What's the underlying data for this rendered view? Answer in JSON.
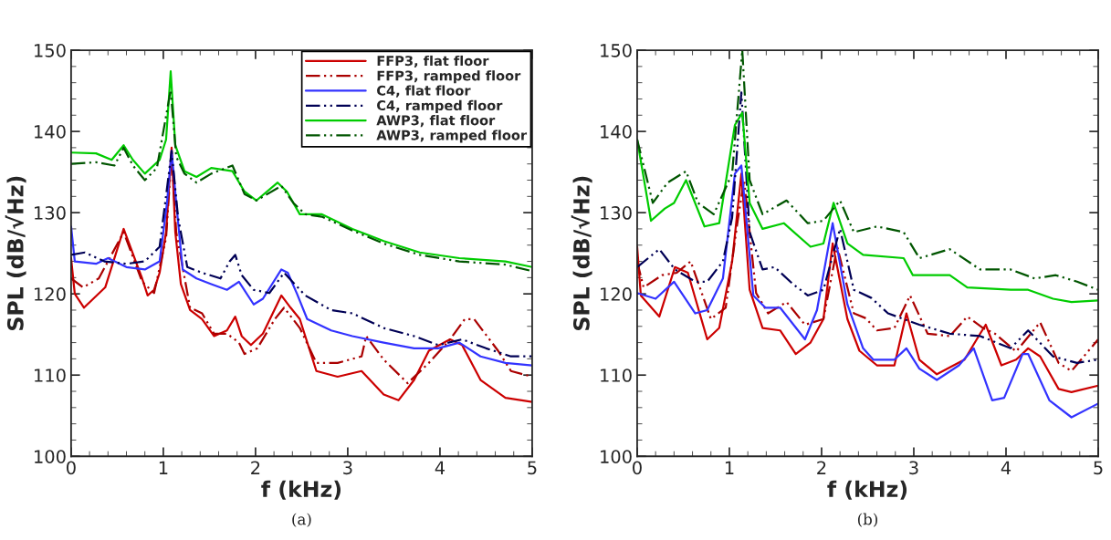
{
  "chart_data": [
    {
      "type": "line",
      "xlabel": "f (kHz)",
      "ylabel": "SPL (dB/√Hz)",
      "xlim": [
        0,
        5
      ],
      "ylim": [
        100,
        150
      ],
      "xticks": [
        0,
        1,
        2,
        3,
        4,
        5
      ],
      "yticks": [
        100,
        110,
        120,
        130,
        140,
        150
      ],
      "grid": false,
      "legend": "top right",
      "annotations": [
        "(a)"
      ],
      "series": [
        {
          "name": "FFP3, flat floor",
          "color": "#cc0000",
          "line_style": "solid",
          "x": [
            0,
            0.04,
            0.14,
            0.37,
            0.57,
            0.77,
            0.83,
            0.9,
            0.96,
            1.03,
            1.09,
            1.13,
            1.19,
            1.29,
            1.42,
            1.55,
            1.69,
            1.78,
            1.85,
            1.95,
            2.08,
            2.28,
            2.38,
            2.48,
            2.66,
            2.89,
            3.15,
            3.39,
            3.55,
            3.72,
            3.88,
            4.11,
            4.24,
            4.44,
            4.71,
            5.0
          ],
          "values": [
            124.4,
            120,
            118.3,
            120.8,
            128,
            121.9,
            119.8,
            120.5,
            122.6,
            127.6,
            138,
            127.6,
            121.2,
            118,
            116.9,
            114.8,
            115.5,
            117.2,
            114.8,
            113.7,
            115.1,
            119.8,
            118.3,
            116.9,
            110.5,
            109.8,
            110.5,
            107.6,
            106.9,
            109.4,
            113,
            114.4,
            113.7,
            109.4,
            107.2,
            106.7
          ]
        },
        {
          "name": "FFP3, ramped floor",
          "color": "#aa0000",
          "line_style": "dashdotdot",
          "x": [
            0,
            0.13,
            0.3,
            0.57,
            0.77,
            0.9,
            1.03,
            1.09,
            1.14,
            1.29,
            1.42,
            1.55,
            1.69,
            1.82,
            1.88,
            2.02,
            2.21,
            2.31,
            2.48,
            2.66,
            2.89,
            3.15,
            3.2,
            3.39,
            3.65,
            3.88,
            4.11,
            4.27,
            4.37,
            4.63,
            4.77,
            5.0
          ],
          "values": [
            121.9,
            120.8,
            121.9,
            127.6,
            121.5,
            120.1,
            126.9,
            137.3,
            127.6,
            118.3,
            117.6,
            115.1,
            115.1,
            114,
            112.6,
            113.3,
            116.9,
            118.3,
            115.8,
            111.5,
            111.5,
            112.3,
            114.8,
            111.9,
            109,
            111.5,
            114.4,
            116.9,
            116.9,
            113,
            110.5,
            109.8
          ]
        },
        {
          "name": "C4, flat floor",
          "color": "#3333ff",
          "line_style": "solid",
          "x": [
            0,
            0.04,
            0.27,
            0.4,
            0.6,
            0.8,
            0.96,
            1.04,
            1.09,
            1.14,
            1.21,
            1.36,
            1.52,
            1.69,
            1.82,
            1.98,
            2.08,
            2.28,
            2.35,
            2.45,
            2.56,
            2.82,
            3.05,
            3.39,
            3.72,
            3.98,
            4.21,
            4.44,
            4.71,
            5.0
          ],
          "values": [
            128.3,
            124,
            123.7,
            124.4,
            123.3,
            123,
            124,
            131.2,
            137.6,
            131.2,
            123,
            121.9,
            121.2,
            120.5,
            121.5,
            118.7,
            119.4,
            123,
            122.6,
            120,
            116.9,
            115.5,
            114.8,
            114,
            113.3,
            113.3,
            114,
            112.3,
            111.5,
            111.2
          ]
        },
        {
          "name": "C4, ramped floor",
          "color": "#000055",
          "line_style": "dashdotdot",
          "x": [
            0,
            0.15,
            0.36,
            0.6,
            0.8,
            0.96,
            1.04,
            1.09,
            1.16,
            1.26,
            1.42,
            1.62,
            1.72,
            1.78,
            1.85,
            1.98,
            2.15,
            2.31,
            2.54,
            2.82,
            3.05,
            3.39,
            3.72,
            3.98,
            4.24,
            4.5,
            4.77,
            5.0
          ],
          "values": [
            124.8,
            125.1,
            124,
            123.7,
            124,
            125.8,
            133,
            137.6,
            129.4,
            123.3,
            122.6,
            121.9,
            124,
            124.8,
            122.3,
            120.5,
            120.1,
            122.6,
            119.8,
            118,
            117.6,
            115.8,
            114.8,
            113.7,
            114.4,
            113.3,
            112.3,
            112.3
          ]
        },
        {
          "name": "AWP3, flat floor",
          "color": "#00cc00",
          "line_style": "solid",
          "x": [
            0,
            0.27,
            0.44,
            0.57,
            0.67,
            0.8,
            0.96,
            1.03,
            1.08,
            1.13,
            1.23,
            1.36,
            1.52,
            1.75,
            1.88,
            2.01,
            2.24,
            2.34,
            2.48,
            2.72,
            3.05,
            3.39,
            3.78,
            4.21,
            4.71,
            5.0
          ],
          "values": [
            137.4,
            137.3,
            136.5,
            138.3,
            136.5,
            134.8,
            136.5,
            139,
            147.4,
            138.3,
            135.1,
            134.4,
            135.5,
            135.1,
            132.6,
            131.5,
            133.7,
            132.6,
            129.8,
            129.8,
            128,
            126.5,
            125.1,
            124.4,
            124,
            123.3
          ]
        },
        {
          "name": "AWP3, ramped floor",
          "color": "#005500",
          "line_style": "dashdotdot",
          "x": [
            0,
            0.27,
            0.47,
            0.57,
            0.67,
            0.8,
            0.93,
            1.08,
            1.14,
            1.23,
            1.36,
            1.52,
            1.75,
            1.88,
            2.01,
            2.28,
            2.41,
            2.54,
            2.72,
            3.05,
            3.39,
            3.78,
            4.21,
            4.71,
            5.0
          ],
          "values": [
            136,
            136.2,
            135.8,
            138,
            135.8,
            134,
            135.5,
            145.1,
            136.9,
            134.8,
            133.7,
            134.8,
            135.8,
            132.3,
            131.5,
            133.3,
            131.2,
            129.8,
            129.5,
            127.8,
            126.2,
            124.8,
            124,
            123.6,
            122.8
          ]
        }
      ]
    },
    {
      "type": "line",
      "xlabel": "f (kHz)",
      "ylabel": "SPL (dB/√Hz)",
      "xlim": [
        0,
        5
      ],
      "ylim": [
        100,
        150
      ],
      "xticks": [
        0,
        1,
        2,
        3,
        4,
        5
      ],
      "yticks": [
        100,
        110,
        120,
        130,
        140,
        150
      ],
      "grid": false,
      "annotations": [
        "(b)"
      ],
      "series": [
        {
          "color": "#cc0000",
          "line_style": "solid",
          "x": [
            0,
            0.04,
            0.24,
            0.41,
            0.55,
            0.76,
            0.89,
            1.03,
            1.13,
            1.22,
            1.36,
            1.55,
            1.72,
            1.88,
            2.02,
            2.12,
            2.28,
            2.41,
            2.6,
            2.79,
            2.92,
            3.06,
            3.25,
            3.55,
            3.72,
            3.78,
            3.95,
            4.11,
            4.24,
            4.37,
            4.57,
            4.71,
            5.0
          ],
          "values": [
            125.8,
            119.8,
            117.2,
            123.3,
            122.6,
            114.4,
            115.8,
            124,
            134.8,
            120.5,
            115.8,
            115.5,
            112.6,
            114,
            116.9,
            126.2,
            116.9,
            113,
            111.2,
            111.2,
            117.6,
            111.9,
            110.1,
            111.9,
            115.1,
            116.2,
            111.2,
            111.9,
            113.3,
            112.3,
            108.3,
            107.9,
            108.7
          ]
        },
        {
          "color": "#aa0000",
          "line_style": "dashdotdot",
          "x": [
            0,
            0.07,
            0.27,
            0.43,
            0.58,
            0.8,
            0.96,
            1.09,
            1.16,
            1.29,
            1.42,
            1.62,
            1.82,
            2.02,
            2.17,
            2.35,
            2.48,
            2.6,
            2.79,
            2.96,
            3.15,
            3.39,
            3.58,
            3.75,
            3.88,
            4.11,
            4.37,
            4.57,
            4.71,
            5.0
          ],
          "values": [
            124,
            120.8,
            122.3,
            122.6,
            124,
            116.9,
            118.3,
            129,
            134,
            120.1,
            117.6,
            119,
            116.2,
            116.9,
            125.8,
            117.6,
            117,
            115.5,
            115.8,
            119.8,
            115.1,
            114.8,
            117.2,
            115.8,
            115.1,
            112.9,
            116.5,
            111.5,
            110.5,
            114.4
          ]
        },
        {
          "color": "#3333ff",
          "line_style": "solid",
          "x": [
            0,
            0.2,
            0.4,
            0.63,
            0.76,
            0.93,
            1.06,
            1.13,
            1.26,
            1.39,
            1.55,
            1.82,
            1.95,
            2.12,
            2.28,
            2.45,
            2.56,
            2.79,
            2.92,
            3.06,
            3.25,
            3.49,
            3.65,
            3.85,
            3.98,
            4.18,
            4.24,
            4.47,
            4.71,
            5.0
          ],
          "values": [
            120.1,
            119.4,
            121.5,
            117.6,
            118,
            121.9,
            134.8,
            135.8,
            119.8,
            118.3,
            118.3,
            114.4,
            118,
            128.7,
            118.7,
            113.3,
            111.9,
            111.9,
            113.3,
            110.8,
            109.4,
            111.2,
            113.3,
            106.9,
            107.2,
            112.6,
            112.6,
            106.9,
            104.8,
            106.5
          ]
        },
        {
          "color": "#000055",
          "line_style": "dashdotdot",
          "x": [
            0,
            0.24,
            0.41,
            0.63,
            0.76,
            0.93,
            1.03,
            1.13,
            1.22,
            1.36,
            1.49,
            1.69,
            1.85,
            2.02,
            2.2,
            2.35,
            2.54,
            2.72,
            3.06,
            3.39,
            3.72,
            4.05,
            4.24,
            4.51,
            4.77,
            5.0
          ],
          "values": [
            123.3,
            125.5,
            123,
            121.5,
            121.5,
            124,
            129.4,
            144.8,
            127.6,
            123,
            123.3,
            121.2,
            119.8,
            120.5,
            128,
            120.5,
            119.5,
            117.6,
            116.2,
            115.1,
            114.8,
            113.3,
            115.5,
            112.3,
            111.5,
            111.9
          ]
        },
        {
          "color": "#00cc00",
          "line_style": "solid",
          "x": [
            0,
            0.15,
            0.3,
            0.4,
            0.53,
            0.73,
            0.89,
            1.06,
            1.14,
            1.22,
            1.36,
            1.59,
            1.88,
            2.02,
            2.13,
            2.28,
            2.45,
            2.89,
            2.99,
            3.39,
            3.58,
            4.05,
            4.24,
            4.51,
            4.71,
            5.0
          ],
          "values": [
            139,
            129,
            130.5,
            131.2,
            134,
            128.3,
            128.7,
            140.8,
            142.3,
            131.2,
            128,
            128.7,
            125.8,
            126.2,
            131.2,
            126.2,
            124.8,
            124.4,
            122.3,
            122.3,
            120.8,
            120.5,
            120.5,
            119.4,
            119,
            119.2
          ]
        },
        {
          "color": "#005500",
          "line_style": "dashdotdot",
          "x": [
            0,
            0.17,
            0.33,
            0.53,
            0.66,
            0.83,
            1.03,
            1.14,
            1.22,
            1.36,
            1.62,
            1.85,
            2.02,
            2.2,
            2.35,
            2.6,
            2.89,
            3.06,
            3.39,
            3.72,
            4.05,
            4.31,
            4.54,
            4.77,
            5.0
          ],
          "values": [
            139,
            131.2,
            133.7,
            135.1,
            131.2,
            129.8,
            134.8,
            150,
            134,
            129.8,
            131.5,
            128.7,
            129,
            131.5,
            127.6,
            128.3,
            127.6,
            124.4,
            125.5,
            123,
            123,
            121.9,
            122.3,
            121.5,
            120.5
          ]
        }
      ]
    }
  ]
}
